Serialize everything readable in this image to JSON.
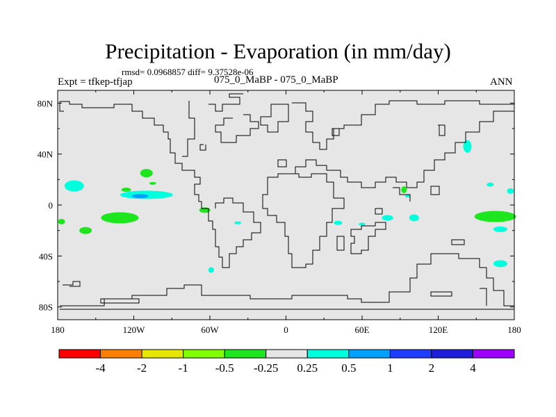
{
  "title": "Precipitation - Evaporation (in mm/day)",
  "stats_text": "rmsd= 0.0968857 diff= 9.37528e-06",
  "left_label": "Expt = tfkep-tfjap",
  "center_label": "075_0_MaBP - 075_0_MaBP",
  "right_label": "ANN",
  "chart_data": {
    "type": "heatmap",
    "background_color": "#e6e6e6",
    "x_ticks": [
      "180",
      "120W",
      "60W",
      "0",
      "60E",
      "120E",
      "180"
    ],
    "y_ticks": [
      "80N",
      "40N",
      "0",
      "40S",
      "80S"
    ],
    "xlim": [
      -180,
      180
    ],
    "ylim": [
      -90,
      90
    ],
    "colorbar": {
      "levels": [
        "-4",
        "-2",
        "-1",
        "-0.5",
        "-0.25",
        "0.25",
        "0.5",
        "1",
        "2",
        "4"
      ],
      "colors": [
        "#ff0000",
        "#ff8000",
        "#e6e600",
        "#80ff00",
        "#1ee61e",
        "#e6e6e6",
        "#00ffdc",
        "#00a0ff",
        "#1e3cff",
        "#1e1edc",
        "#a000ff"
      ]
    },
    "anomaly_regions": [
      {
        "lon": -167,
        "lat": 15,
        "level": "0.25 to 0.5"
      },
      {
        "lon": -110,
        "lat": 8,
        "level": "0.25 to 0.5"
      },
      {
        "lon": -115,
        "lat": 7,
        "level": "0.5 to 1"
      },
      {
        "lon": -110,
        "lat": 25,
        "level": "-0.25 to -0.5"
      },
      {
        "lon": -126,
        "lat": 12,
        "level": "-0.25 to -0.5"
      },
      {
        "lon": -105,
        "lat": 17,
        "level": "-0.25 to -0.5"
      },
      {
        "lon": -131,
        "lat": -10,
        "level": "-0.25 to -0.5"
      },
      {
        "lon": -177,
        "lat": -13,
        "level": "-0.25 to -0.5"
      },
      {
        "lon": -158,
        "lat": -20,
        "level": "-0.25 to -0.5"
      },
      {
        "lon": -64,
        "lat": -4,
        "level": "-0.25 to -0.5"
      },
      {
        "lon": -38,
        "lat": -14,
        "level": "0.25 to 0.5"
      },
      {
        "lon": -59,
        "lat": -51,
        "level": "0.25 to 0.5"
      },
      {
        "lon": 41,
        "lat": -14,
        "level": "0.25 to 0.5"
      },
      {
        "lon": 60,
        "lat": -15,
        "level": "0.25 to 0.5"
      },
      {
        "lon": 80,
        "lat": -10,
        "level": "0.25 to 0.5"
      },
      {
        "lon": 101,
        "lat": -10,
        "level": "0.25 to 0.5"
      },
      {
        "lon": 93,
        "lat": 12,
        "level": "-0.25 to -0.5"
      },
      {
        "lon": 96,
        "lat": 7,
        "level": "0.25 to 0.5"
      },
      {
        "lon": 143,
        "lat": 46,
        "level": "0.25 to 0.5"
      },
      {
        "lon": 165,
        "lat": -9,
        "level": "-0.25 to -0.5"
      },
      {
        "lon": 169,
        "lat": -19,
        "level": "0.25 to 0.5"
      },
      {
        "lon": 177,
        "lat": 11,
        "level": "0.25 to 0.5"
      },
      {
        "lon": 169,
        "lat": -46,
        "level": "0.25 to 0.5"
      },
      {
        "lon": 161,
        "lat": 16,
        "level": "0.25 to 0.5"
      }
    ]
  }
}
